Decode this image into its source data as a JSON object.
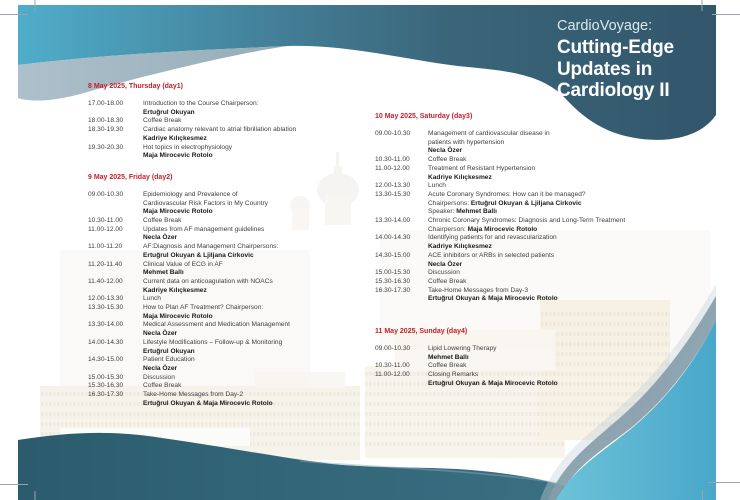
{
  "title": {
    "pre": "CardioVoyage:",
    "lines": [
      "Cutting-Edge",
      "Updates in",
      "Cardiology II"
    ]
  },
  "colors": {
    "header_red": "#c2202a",
    "top_band_cyan": "#4fadca",
    "top_band_dark": "#32566b",
    "accent_gray_blue": "#9fb5c1",
    "bottom_left_teal": "#2f6375",
    "bottom_right_cyan": "#53b0cf",
    "bottom_band_slate": "#869dab",
    "body_text": "#3e3e3e"
  },
  "schedule": {
    "days": [
      {
        "header": "8 May 2025, Thursday (day1)",
        "column": "left",
        "sessions": [
          {
            "time": "17.00-18.00",
            "lines": [
              {
                "text": "Introduction to the Course Chairperson:"
              },
              {
                "text": "Ertuğrul Okuyan",
                "bold": true
              }
            ]
          },
          {
            "time": "18.00-18.30",
            "lines": [
              {
                "text": "Coffee Break"
              }
            ]
          },
          {
            "time": "18.30-19.30",
            "lines": [
              {
                "text": "Cardiac anatomy relevant to atrial fibrillation ablation"
              },
              {
                "text": "Kadriye Kılıçkesmez",
                "bold": true
              }
            ]
          },
          {
            "time": "19.30-20.30",
            "lines": [
              {
                "text": "Hot topics in electrophysiology"
              },
              {
                "text": "Maja Mirocevic Rotolo",
                "bold": true
              }
            ]
          }
        ]
      },
      {
        "header": "9 May 2025, Friday (day2)",
        "column": "left",
        "sessions": [
          {
            "time": "09.00-10.30",
            "lines": [
              {
                "text": "Epidemiology and Prevalence of"
              },
              {
                "text": "Cardiovascular Risk Factors in My Country"
              },
              {
                "text": "Maja Mirocevic Rotolo",
                "bold": true
              }
            ]
          },
          {
            "time": "10.30-11.00",
            "lines": [
              {
                "text": "Coffee Break"
              }
            ]
          },
          {
            "time": "11.00-12.00",
            "lines": [
              {
                "text": "Updates from AF management guidelines"
              },
              {
                "text": "Necla Özer",
                "bold": true
              }
            ]
          },
          {
            "time": "11.00-11.20",
            "lines": [
              {
                "text": "AF:Diagnosis and Management Chairpersons:"
              },
              {
                "text": "Ertuğrul Okuyan & Ljiljana Cirkovic",
                "bold": true
              }
            ]
          },
          {
            "time": "11.20-11.40",
            "lines": [
              {
                "text": "Clinical Value of ECG in AF"
              },
              {
                "text": "Mehmet Ballı",
                "bold": true
              }
            ]
          },
          {
            "time": "11.40-12.00",
            "lines": [
              {
                "text": "Current data on anticoagulation with NOACs"
              },
              {
                "text": "Kadriye Kılıçkesmez",
                "bold": true
              }
            ]
          },
          {
            "time": "12.00-13.30",
            "lines": [
              {
                "text": "Lunch"
              }
            ]
          },
          {
            "time": "13.30-15.30",
            "lines": [
              {
                "text": "How to Plan AF Treatment? Chairperson:"
              },
              {
                "text": "Maja Mirocevic Rotolo",
                "bold": true
              }
            ]
          },
          {
            "time": "13.30-14.00",
            "lines": [
              {
                "text": "Medical Assessment and Medication Management"
              },
              {
                "text": "Necla Özer",
                "bold": true
              }
            ]
          },
          {
            "time": "14.00-14.30",
            "lines": [
              {
                "text": "Lifestyle Modifications – Follow-up & Monitoring"
              },
              {
                "text": "Ertuğrul Okuyan",
                "bold": true
              }
            ]
          },
          {
            "time": "14.30-15.00",
            "lines": [
              {
                "text": "Patient Education"
              },
              {
                "text": "Necla Özer",
                "bold": true
              }
            ]
          },
          {
            "time": "15.00-15.30",
            "lines": [
              {
                "text": "Discussion"
              }
            ]
          },
          {
            "time": "15.30-16.30",
            "lines": [
              {
                "text": "Coffee Break"
              }
            ]
          },
          {
            "time": "16.30-17.30",
            "lines": [
              {
                "text": "Take-Home Messages from Day-2"
              },
              {
                "text": "Ertuğrul Okuyan & Maja Mirocevic Rotolo",
                "bold": true
              }
            ]
          }
        ]
      },
      {
        "header": "10 May 2025, Saturday (day3)",
        "column": "right",
        "sessions": [
          {
            "time": "09.00-10.30",
            "lines": [
              {
                "text": "Management of cardiovascular disease in"
              },
              {
                "text": "patients with hypertension"
              },
              {
                "text": "Necla Özer",
                "bold": true
              }
            ]
          },
          {
            "time": "10.30-11.00",
            "lines": [
              {
                "text": "Coffee Break"
              }
            ]
          },
          {
            "time": "11.00-12.00",
            "lines": [
              {
                "text": "Treatment of Resistant Hypertension"
              },
              {
                "text": "Kadriye Kılıçkesmez",
                "bold": true
              }
            ]
          },
          {
            "time": "12.00-13.30",
            "lines": [
              {
                "text": "Lunch"
              }
            ]
          },
          {
            "time": "13.30-15.30",
            "lines": [
              {
                "text": "Acute Coronary Syndromes: How can it be managed?"
              },
              {
                "prefix": "Chairpersons: ",
                "text": "Ertuğrul Okuyan & Ljiljana Cirkovic",
                "bold": true
              },
              {
                "prefix": "Speaker: ",
                "text": "Mehmet Ballı",
                "bold": true
              }
            ]
          },
          {
            "time": "13.30-14.00",
            "lines": [
              {
                "text": "Chronic Coronary Syndromes: Diagnosis and Long-Term Treatment"
              },
              {
                "prefix": "Chairperson: ",
                "text": "Maja Mirocevic Rotolo",
                "bold": true
              }
            ]
          },
          {
            "time": "14.00-14.30",
            "lines": [
              {
                "text": "Identifying patients for and revascularization"
              },
              {
                "text": "Kadriye Kılıçkesmez",
                "bold": true
              }
            ]
          },
          {
            "time": "14.30-15.00",
            "lines": [
              {
                "text": "ACE inhibitors or ARBs in selected patients"
              },
              {
                "text": "Necla Özer",
                "bold": true
              }
            ]
          },
          {
            "time": "15.00-15.30",
            "lines": [
              {
                "text": "Discussion"
              }
            ]
          },
          {
            "time": "15.30-16.30",
            "lines": [
              {
                "text": "Coffee Break"
              }
            ]
          },
          {
            "time": "16.30-17.30",
            "lines": [
              {
                "text": "Take-Home Messages from Day-3"
              },
              {
                "text": "Ertuğrul Okuyan & Maja Mirocevic Rotolo",
                "bold": true
              }
            ]
          }
        ]
      },
      {
        "header": "11 May 2025, Sunday (day4)",
        "column": "right",
        "sessions": [
          {
            "time": "09.00-10.30",
            "lines": [
              {
                "text": "Lipid Lowering Therapy"
              },
              {
                "text": "Mehmet Ballı",
                "bold": true
              }
            ]
          },
          {
            "time": "10.30-11.00",
            "lines": [
              {
                "text": "Coffee Break"
              }
            ]
          },
          {
            "time": "11.00-12.00",
            "lines": [
              {
                "text": "Closing Remarks"
              },
              {
                "text": "Ertuğrul Okuyan & Maja Mirocevic Rotolo",
                "bold": true
              }
            ]
          }
        ]
      }
    ]
  }
}
